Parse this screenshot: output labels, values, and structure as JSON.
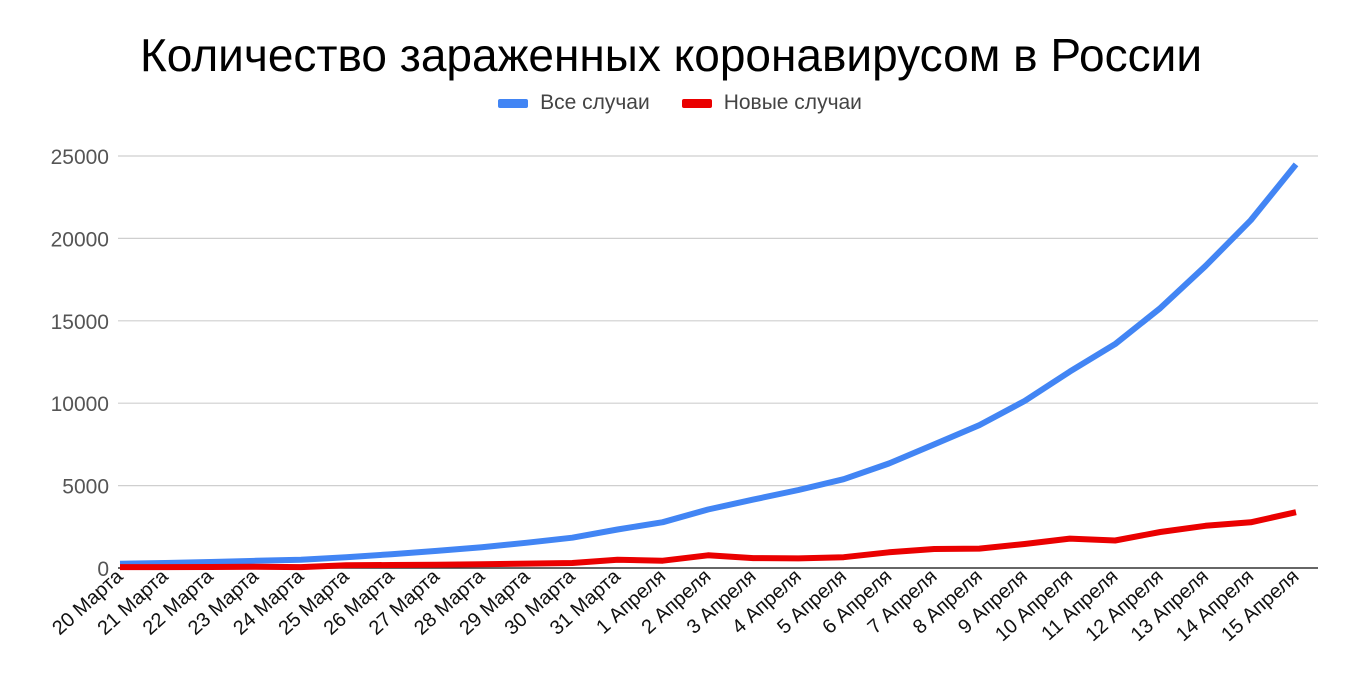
{
  "chart_data": {
    "type": "line",
    "title": "Количество зараженных коронавирусом в России",
    "xlabel": "",
    "ylabel": "",
    "ylim": [
      0,
      25000
    ],
    "yticks": [
      0,
      5000,
      10000,
      15000,
      20000,
      25000
    ],
    "grid": true,
    "legend_position": "top-center",
    "categories": [
      "20 Марта",
      "21 Марта",
      "22 Марта",
      "23 Марта",
      "24 Марта",
      "25 Марта",
      "26 Марта",
      "27 Марта",
      "28 Марта",
      "29 Марта",
      "30 Марта",
      "31 Марта",
      "1 Апреля",
      "2 Апреля",
      "3 Апреля",
      "4 Апреля",
      "5 Апреля",
      "6 Апреля",
      "7 Апреля",
      "8 Апреля",
      "9 Апреля",
      "10 Апреля",
      "11 Апреля",
      "12 Апреля",
      "13 Апреля",
      "14 Апреля",
      "15 Апреля"
    ],
    "series": [
      {
        "name": "Все случаи",
        "color": "#4285f4",
        "values": [
          253,
          306,
          367,
          438,
          495,
          658,
          840,
          1036,
          1264,
          1534,
          1836,
          2337,
          2777,
          3548,
          4149,
          4731,
          5389,
          6343,
          7497,
          8672,
          10131,
          11917,
          13584,
          15770,
          18328,
          21102,
          24490
        ]
      },
      {
        "name": "Новые случаи",
        "color": "#ea0000",
        "values": [
          52,
          53,
          61,
          71,
          57,
          163,
          182,
          196,
          228,
          270,
          302,
          501,
          440,
          771,
          601,
          582,
          658,
          954,
          1154,
          1175,
          1459,
          1786,
          1667,
          2186,
          2558,
          2774,
          3388
        ]
      }
    ]
  }
}
